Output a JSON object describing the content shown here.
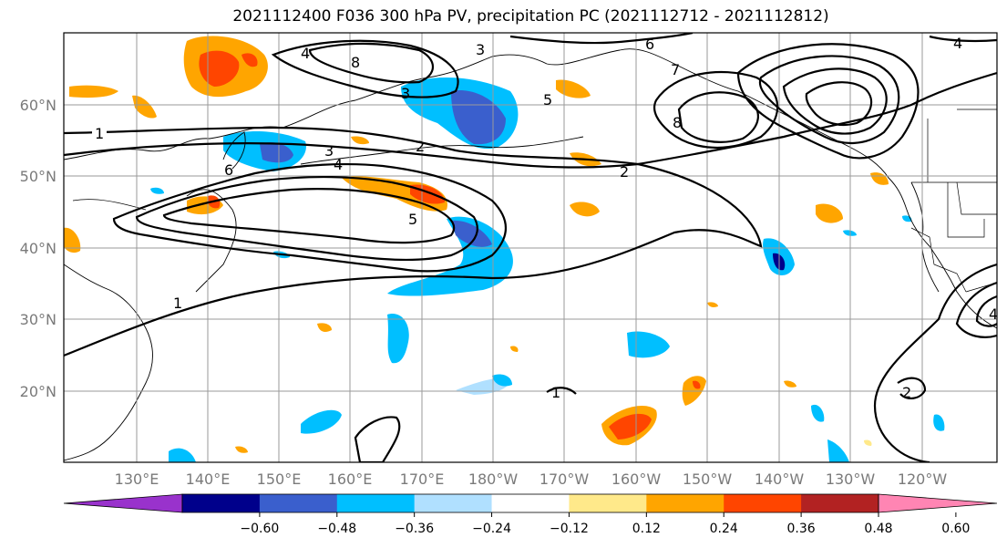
{
  "title": "2021112400 F036 300 hPa PV, precipitation PC (2021112712 - 2021112812)",
  "lat_labels": [
    "60°N",
    "50°N",
    "40°N",
    "30°N",
    "20°N"
  ],
  "lon_labels": [
    "130°E",
    "140°E",
    "150°E",
    "160°E",
    "170°E",
    "180°W",
    "170°W",
    "160°W",
    "150°W",
    "140°W",
    "130°W",
    "120°W"
  ],
  "colorbar": {
    "colors": [
      "#9932cc",
      "#00008b",
      "#3a5fcd",
      "#00bfff",
      "#b0e0ff",
      "#ffffff",
      "#ffe98a",
      "#ffa500",
      "#ff4500",
      "#b22222",
      "#ff85b3"
    ],
    "tick_labels": [
      "−0.60",
      "−0.48",
      "−0.36",
      "−0.24",
      "−0.12",
      "0.12",
      "0.24",
      "0.36",
      "0.48",
      "0.60"
    ]
  },
  "contour_labels": [
    "1",
    "1",
    "2",
    "2",
    "3",
    "3",
    "4",
    "4",
    "5",
    "6",
    "6",
    "7",
    "8",
    "8",
    "1",
    "2",
    "4",
    "5",
    "3",
    "4"
  ]
}
